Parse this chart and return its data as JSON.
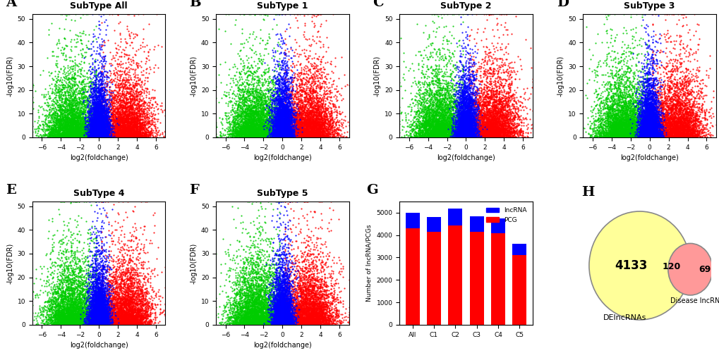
{
  "volcano_titles": [
    "SubType All",
    "SubType 1",
    "SubType 2",
    "SubType 3",
    "SubType 4",
    "SubType 5"
  ],
  "panel_labels": [
    "A",
    "B",
    "C",
    "D",
    "E",
    "F",
    "G",
    "H"
  ],
  "xlim": [
    -7,
    7
  ],
  "ylim": [
    0,
    52
  ],
  "xticks": [
    -6,
    -4,
    -2,
    0,
    2,
    4,
    6
  ],
  "yticks": [
    0,
    10,
    20,
    30,
    40,
    50
  ],
  "xlabel": "log2(foldchange)",
  "ylabel": "-log10(FDR)",
  "color_down": "#00CC00",
  "color_ns": "#0000FF",
  "color_up": "#FF0000",
  "bar_categories": [
    "All",
    "C1",
    "C2",
    "C3",
    "C4",
    "C5"
  ],
  "bar_lncrna": [
    680,
    650,
    760,
    700,
    660,
    480
  ],
  "bar_pcg": [
    4320,
    4150,
    4440,
    4150,
    4080,
    3120
  ],
  "bar_color_lncrna": "#0000FF",
  "bar_color_pcg": "#FF0000",
  "bar_ylim": [
    0,
    5500
  ],
  "bar_yticks": [
    0,
    1000,
    2000,
    3000,
    4000,
    5000
  ],
  "bar_ylabel": "Number of lncRNA/PCGs",
  "venn_large_n": 4133,
  "venn_overlap_n": 120,
  "venn_small_n": 69,
  "venn_large_label": "DElncRNAs",
  "venn_small_label": "Disease lncRNAs",
  "venn_large_color": "#FFFF99",
  "venn_overlap_color": "#FF9999",
  "background_color": "#FFFFFF",
  "title_fontsize": 9,
  "label_fontsize": 8,
  "panel_label_fontsize": 14
}
